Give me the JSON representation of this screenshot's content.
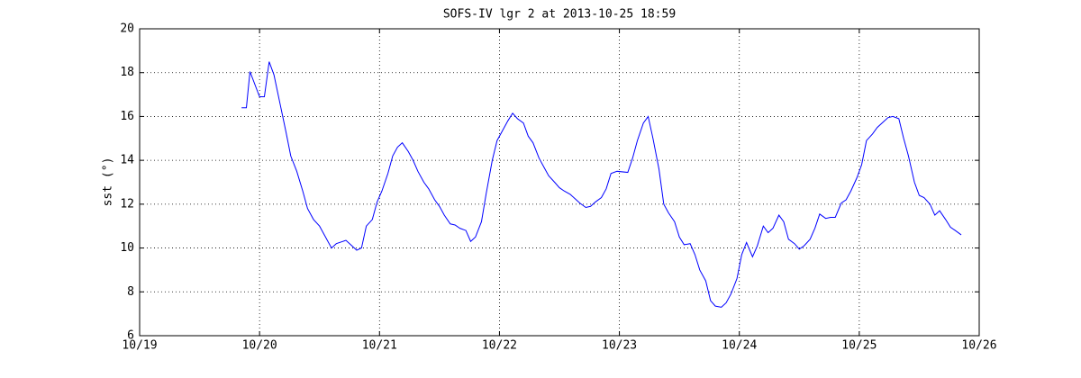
{
  "chart_data": {
    "type": "line",
    "title": "SOFS-IV lgr 2 at 2013-10-25 18:59",
    "y_label": "sst (°)",
    "x": [
      19.85,
      19.89,
      19.92,
      20.0,
      20.04,
      20.08,
      20.12,
      20.17,
      20.22,
      20.26,
      20.31,
      20.36,
      20.4,
      20.45,
      20.5,
      20.54,
      20.6,
      20.64,
      20.72,
      20.77,
      20.81,
      20.85,
      20.89,
      20.94,
      20.98,
      21.02,
      21.07,
      21.11,
      21.15,
      21.19,
      21.24,
      21.28,
      21.32,
      21.37,
      21.41,
      21.46,
      21.5,
      21.54,
      21.59,
      21.63,
      21.67,
      21.72,
      21.76,
      21.8,
      21.85,
      21.89,
      21.94,
      21.98,
      22.02,
      22.07,
      22.11,
      22.15,
      22.2,
      22.24,
      22.28,
      22.33,
      22.37,
      22.41,
      22.46,
      22.5,
      22.54,
      22.59,
      22.63,
      22.67,
      22.72,
      22.76,
      22.8,
      22.85,
      22.89,
      22.93,
      22.98,
      23.07,
      23.11,
      23.15,
      23.2,
      23.24,
      23.28,
      23.33,
      23.37,
      23.41,
      23.46,
      23.5,
      23.54,
      23.59,
      23.63,
      23.67,
      23.72,
      23.76,
      23.8,
      23.85,
      23.89,
      23.93,
      23.98,
      24.02,
      24.06,
      24.11,
      24.15,
      24.2,
      24.24,
      24.28,
      24.33,
      24.37,
      24.41,
      24.46,
      24.5,
      24.54,
      24.59,
      24.63,
      24.67,
      24.72,
      24.76,
      24.8,
      24.85,
      24.89,
      24.93,
      24.98,
      25.02,
      25.06,
      25.11,
      25.15,
      25.2,
      25.24,
      25.28,
      25.33,
      25.37,
      25.41,
      25.46,
      25.5,
      25.54,
      25.59,
      25.63,
      25.67,
      25.72,
      25.76,
      25.8,
      25.85
    ],
    "series": [
      {
        "name": "sst",
        "color": "#0000ff",
        "values": [
          16.4,
          16.4,
          18.05,
          16.9,
          16.9,
          18.5,
          17.9,
          16.6,
          15.3,
          14.2,
          13.5,
          12.6,
          11.8,
          11.3,
          11.0,
          10.6,
          10.0,
          10.2,
          10.35,
          10.1,
          9.9,
          10.0,
          11.0,
          11.3,
          12.1,
          12.6,
          13.4,
          14.2,
          14.6,
          14.8,
          14.4,
          14.0,
          13.5,
          13.0,
          12.7,
          12.2,
          11.9,
          11.5,
          11.1,
          11.05,
          10.9,
          10.8,
          10.3,
          10.5,
          11.2,
          12.5,
          14.0,
          14.9,
          15.3,
          15.8,
          16.15,
          15.9,
          15.7,
          15.1,
          14.8,
          14.1,
          13.7,
          13.3,
          13.0,
          12.75,
          12.6,
          12.45,
          12.25,
          12.05,
          11.85,
          11.9,
          12.1,
          12.3,
          12.7,
          13.4,
          13.5,
          13.45,
          14.1,
          14.9,
          15.7,
          16.0,
          15.0,
          13.6,
          12.0,
          11.6,
          11.2,
          10.5,
          10.15,
          10.2,
          9.7,
          9.0,
          8.5,
          7.6,
          7.35,
          7.3,
          7.5,
          7.9,
          8.6,
          9.7,
          10.25,
          9.6,
          10.1,
          11.0,
          10.7,
          10.9,
          11.5,
          11.2,
          10.4,
          10.2,
          9.95,
          10.1,
          10.4,
          10.9,
          11.55,
          11.35,
          11.4,
          11.4,
          12.05,
          12.2,
          12.6,
          13.2,
          13.8,
          14.9,
          15.2,
          15.5,
          15.75,
          15.95,
          16.0,
          15.9,
          15.0,
          14.2,
          13.0,
          12.4,
          12.3,
          12.0,
          11.5,
          11.7,
          11.3,
          10.95,
          10.8,
          10.6
        ]
      }
    ],
    "xlim": [
      19,
      26
    ],
    "xticks": [
      {
        "value": 19,
        "label": "10/19"
      },
      {
        "value": 20,
        "label": "10/20"
      },
      {
        "value": 21,
        "label": "10/21"
      },
      {
        "value": 22,
        "label": "10/22"
      },
      {
        "value": 23,
        "label": "10/23"
      },
      {
        "value": 24,
        "label": "10/24"
      },
      {
        "value": 25,
        "label": "10/25"
      },
      {
        "value": 26,
        "label": "10/26"
      }
    ],
    "ylim": [
      6,
      20
    ],
    "yticks": [
      6,
      8,
      10,
      12,
      14,
      16,
      18,
      20
    ],
    "grid": true
  }
}
